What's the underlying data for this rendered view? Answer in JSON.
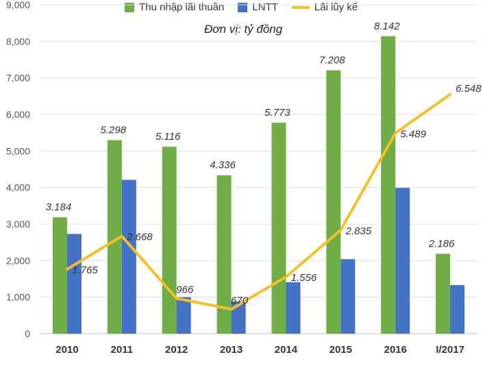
{
  "chart_data": {
    "type": "bar",
    "categories": [
      "2010",
      "2011",
      "2012",
      "2013",
      "2014",
      "2015",
      "2016",
      "I/2017"
    ],
    "series": [
      {
        "name": "Thu nhập lãi thuần",
        "type": "bar",
        "color": "#70ad47",
        "values": [
          3184,
          5298,
          5116,
          4336,
          5773,
          7208,
          8142,
          2186
        ],
        "labels": [
          "3.184",
          "5.298",
          "5.116",
          "4.336",
          "5.773",
          "7.208",
          "8.142",
          "2.186"
        ]
      },
      {
        "name": "LNTT",
        "type": "bar",
        "color": "#4472c4",
        "values": [
          2730,
          4210,
          1000,
          880,
          1410,
          2040,
          3990,
          1330
        ]
      },
      {
        "name": "Lãi lũy kế",
        "type": "line",
        "color": "#f4c025",
        "values": [
          1765,
          2668,
          966,
          670,
          1556,
          2835,
          5489,
          6548
        ],
        "labels": [
          "1.765",
          "2.668",
          "966",
          "670",
          "1.556",
          "2.835",
          "5.489",
          "6.548"
        ]
      }
    ],
    "yticks": [
      "0",
      "1,000",
      "2,000",
      "3,000",
      "4,000",
      "5,000",
      "6,000",
      "7,000",
      "8,000",
      "9,000"
    ],
    "ylim": [
      0,
      9000
    ],
    "grid": true,
    "subtitle": "Đơn vị: tỷ đồng",
    "legend": "top"
  }
}
